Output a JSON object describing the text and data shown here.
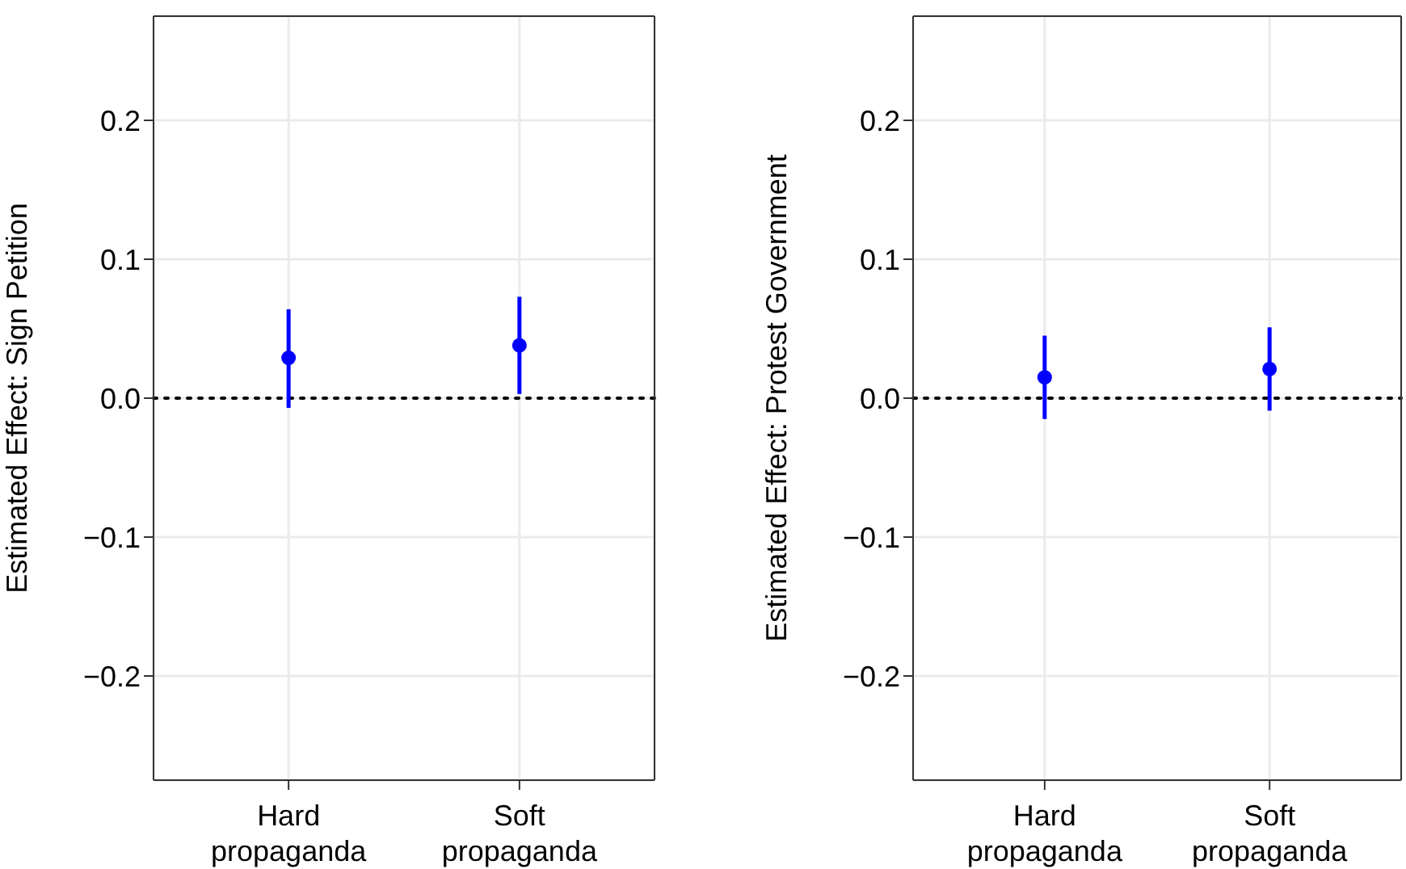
{
  "chart_data": [
    {
      "type": "scatter",
      "categories": [
        "Hard propaganda",
        "Soft propaganda"
      ],
      "values": [
        0.029,
        0.038
      ],
      "errors": [
        [
          -0.007,
          0.064
        ],
        [
          0.003,
          0.073
        ]
      ],
      "color": "#0000ff",
      "marker": "circle",
      "ylabel": "Estimated Effect: Sign Petition",
      "ylim": [
        -0.275,
        0.275
      ],
      "yticks": [
        {
          "value": -0.2,
          "label": "−0.2"
        },
        {
          "value": -0.1,
          "label": "−0.1"
        },
        {
          "value": 0,
          "label": "0.0"
        },
        {
          "value": 0.1,
          "label": "0.1"
        },
        {
          "value": 0.2,
          "label": "0.2"
        }
      ],
      "grid": true,
      "ref_lines": [
        {
          "axis": "y",
          "value": 0,
          "color": "#000000",
          "line_style": "dotted"
        }
      ]
    },
    {
      "type": "scatter",
      "categories": [
        "Hard propaganda",
        "Soft propaganda"
      ],
      "values": [
        0.015,
        0.021
      ],
      "errors": [
        [
          -0.015,
          0.045
        ],
        [
          -0.009,
          0.051
        ]
      ],
      "color": "#0000ff",
      "marker": "circle",
      "ylabel": "Estimated Effect: Protest Government",
      "ylim": [
        -0.275,
        0.275
      ],
      "yticks": [
        {
          "value": -0.2,
          "label": "−0.2"
        },
        {
          "value": -0.1,
          "label": "−0.1"
        },
        {
          "value": 0,
          "label": "0.0"
        },
        {
          "value": 0.1,
          "label": "0.1"
        },
        {
          "value": 0.2,
          "label": "0.2"
        }
      ],
      "grid": true,
      "ref_lines": [
        {
          "axis": "y",
          "value": 0,
          "color": "#000000",
          "line_style": "dotted"
        }
      ]
    }
  ]
}
